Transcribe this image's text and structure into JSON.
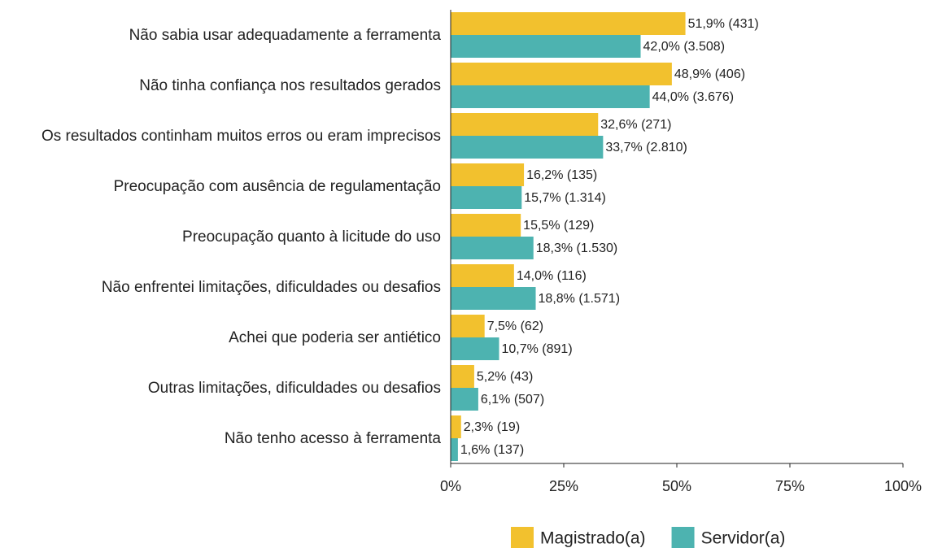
{
  "chart_data": {
    "type": "bar",
    "orientation": "horizontal",
    "categories": [
      "Não sabia usar adequadamente a ferramenta",
      "Não tinha confiança nos resultados gerados",
      "Os resultados continham muitos erros ou eram imprecisos",
      "Preocupação com ausência de regulamentação",
      "Preocupação quanto à licitude do uso",
      "Não enfrentei limitações, dificuldades ou desafios",
      "Achei que poderia ser antiético",
      "Outras limitações, dificuldades ou desafios",
      "Não tenho acesso à ferramenta"
    ],
    "series": [
      {
        "name": "Magistrado(a)",
        "color": "#f2c12e",
        "values": [
          51.9,
          48.9,
          32.6,
          16.2,
          15.5,
          14.0,
          7.5,
          5.2,
          2.3
        ],
        "value_labels": [
          "51,9% (431)",
          "48,9% (406)",
          "32,6% (271)",
          "16,2% (135)",
          "15,5% (129)",
          "14,0% (116)",
          "7,5% (62)",
          "5,2% (43)",
          "2,3% (19)"
        ]
      },
      {
        "name": "Servidor(a)",
        "color": "#4db3b0",
        "values": [
          42.0,
          44.0,
          33.7,
          15.7,
          18.3,
          18.8,
          10.7,
          6.1,
          1.6
        ],
        "value_labels": [
          "42,0% (3.508)",
          "44,0% (3.676)",
          "33,7% (2.810)",
          "15,7% (1.314)",
          "18,3% (1.530)",
          "18,8% (1.571)",
          "10,7% (891)",
          "6,1% (507)",
          "1,6% (137)"
        ]
      }
    ],
    "xlim": [
      0,
      100
    ],
    "xticks": [
      {
        "value": 0,
        "label": "0%"
      },
      {
        "value": 25,
        "label": "25%"
      },
      {
        "value": 50,
        "label": "50%"
      },
      {
        "value": 75,
        "label": "75%"
      },
      {
        "value": 100,
        "label": "100%"
      }
    ],
    "legend": "bottom"
  }
}
